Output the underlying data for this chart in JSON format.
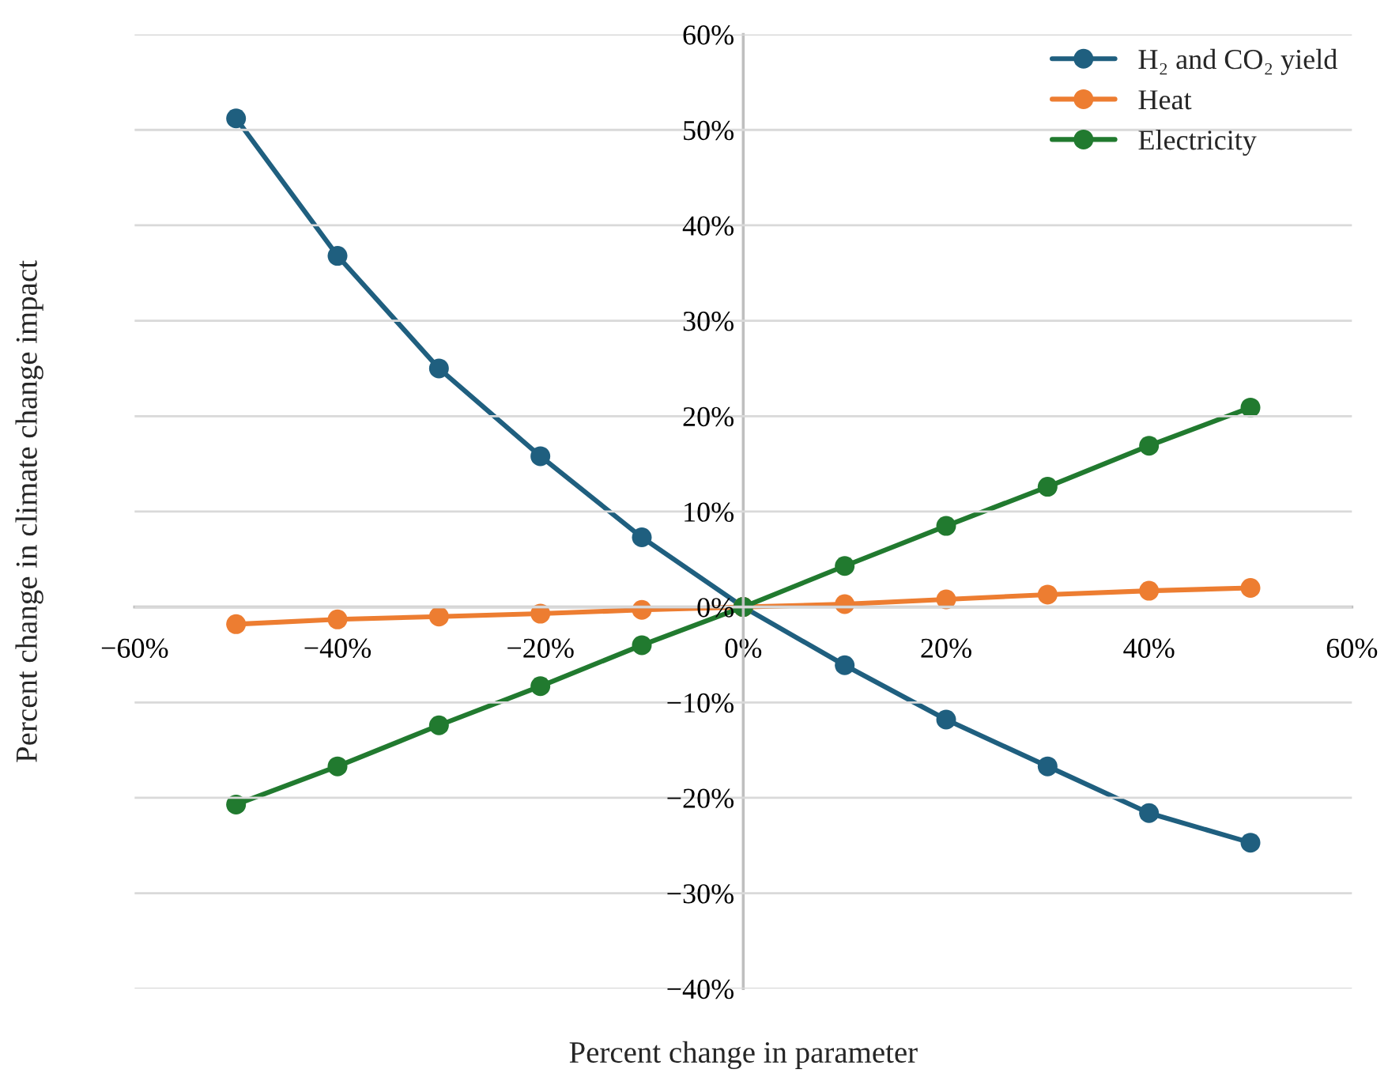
{
  "chart_data": {
    "type": "line",
    "xlabel": "Percent change in parameter",
    "ylabel": "Percent change in climate change impact",
    "x": [
      -50,
      -40,
      -30,
      -20,
      -10,
      0,
      10,
      20,
      30,
      40,
      50
    ],
    "series": [
      {
        "name": "H₂ and CO₂ yield",
        "color": "#1f5f7f",
        "values": [
          51.2,
          36.8,
          25.0,
          15.8,
          7.3,
          0,
          -6.1,
          -11.8,
          -16.7,
          -21.6,
          -24.7
        ]
      },
      {
        "name": "Heat",
        "color": "#ed7d31",
        "values": [
          -1.8,
          -1.3,
          -1.0,
          -0.7,
          -0.3,
          0,
          0.3,
          0.8,
          1.3,
          1.7,
          2.0
        ]
      },
      {
        "name": "Electricity",
        "color": "#217a2f",
        "values": [
          -20.7,
          -16.7,
          -12.4,
          -8.3,
          -4.0,
          0,
          4.3,
          8.5,
          12.6,
          16.9,
          20.9
        ]
      }
    ],
    "xlim": [
      -60,
      60
    ],
    "xticks": [
      {
        "value": -60,
        "label": "−60%"
      },
      {
        "value": -40,
        "label": "−40%"
      },
      {
        "value": -20,
        "label": "−20%"
      },
      {
        "value": 0,
        "label": "0%"
      },
      {
        "value": 20,
        "label": "20%"
      },
      {
        "value": 40,
        "label": "40%"
      },
      {
        "value": 60,
        "label": "60%"
      }
    ],
    "ylim": [
      -40,
      60
    ],
    "yticks": [
      {
        "value": -40,
        "label": "−40%"
      },
      {
        "value": -30,
        "label": "−30%"
      },
      {
        "value": -20,
        "label": "−20%"
      },
      {
        "value": -10,
        "label": "−10%"
      },
      {
        "value": 0,
        "label": "0%"
      },
      {
        "value": 10,
        "label": "10%"
      },
      {
        "value": 20,
        "label": "20%"
      },
      {
        "value": 30,
        "label": "30%"
      },
      {
        "value": 40,
        "label": "40%"
      },
      {
        "value": 50,
        "label": "50%"
      },
      {
        "value": 60,
        "label": "60%"
      }
    ],
    "grid": "y",
    "legend": "top right",
    "marker": "circle",
    "line_style": "solid"
  }
}
